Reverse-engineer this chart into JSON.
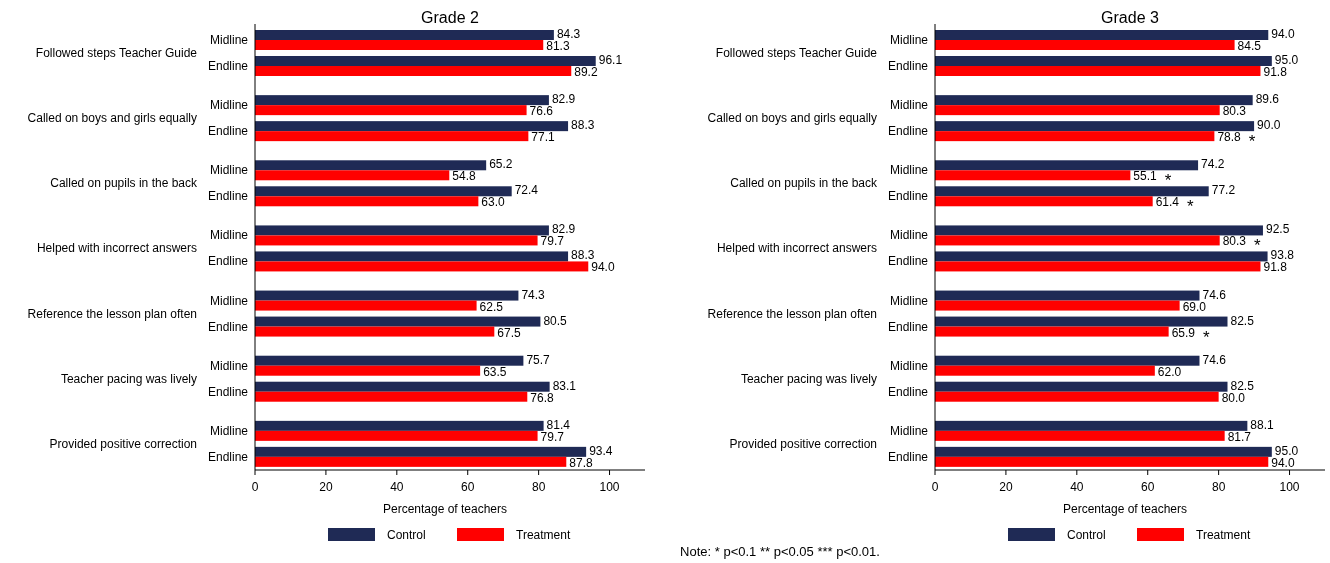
{
  "chart_data": [
    {
      "type": "bar",
      "orientation": "horizontal",
      "title": "Grade 2",
      "xlabel": "Percentage of teachers",
      "categories": [
        "Midline",
        "Endline",
        "Midline",
        "Endline",
        "Midline",
        "Endline",
        "Midline",
        "Endline",
        "Midline",
        "Endline",
        "Midline",
        "Endline",
        "Midline",
        "Endline"
      ],
      "series": [
        {
          "name": "Control",
          "color": "#1f2a55",
          "values": [
            84.3,
            96.1,
            82.9,
            88.3,
            65.2,
            72.4,
            82.9,
            88.3,
            74.3,
            80.5,
            75.7,
            83.1,
            81.4,
            93.4
          ],
          "value_labels": [
            "84.3",
            "96.1",
            "82.9",
            "88.3",
            "65.2",
            "72.4",
            "82.9",
            "88.3",
            "74.3",
            "80.5",
            "75.7",
            "83.1",
            "81.4",
            "93.4"
          ]
        },
        {
          "name": "Treatment",
          "color": "#ff0000",
          "values": [
            81.3,
            89.2,
            76.6,
            77.1,
            54.8,
            63.0,
            79.7,
            94.0,
            62.5,
            67.5,
            63.5,
            76.8,
            79.7,
            87.8
          ],
          "value_labels": [
            "81.3",
            "89.2",
            "76.6",
            "77.1",
            "54.8",
            "63.0",
            "79.7",
            "94.0",
            "62.5",
            "67.5",
            "63.5",
            "76.8",
            "79.7",
            "87.8"
          ]
        }
      ],
      "xlim": [
        0,
        110
      ],
      "xticks": [
        0,
        20,
        40,
        60,
        80,
        100
      ],
      "legend": "bottom",
      "annotations": [
        "Followed steps Teacher Guide",
        "Called on boys and girls equally",
        "Called on pupils in the back",
        "Helped with incorrect answers",
        "Reference the lesson plan often",
        "Teacher pacing was lively",
        "Provided positive correction"
      ]
    },
    {
      "type": "bar",
      "orientation": "horizontal",
      "title": "Grade 3",
      "xlabel": "Percentage of teachers",
      "categories": [
        "Midline",
        "Endline",
        "Midline",
        "Endline",
        "Midline",
        "Endline",
        "Midline",
        "Endline",
        "Midline",
        "Endline",
        "Midline",
        "Endline",
        "Midline",
        "Endline"
      ],
      "series": [
        {
          "name": "Control",
          "color": "#1f2a55",
          "values": [
            94.0,
            95.0,
            89.6,
            90.0,
            74.2,
            77.2,
            92.5,
            93.8,
            74.6,
            82.5,
            74.6,
            82.5,
            88.1,
            95.0
          ],
          "value_labels": [
            "94.0",
            "95.0",
            "89.6",
            "90.0",
            "74.2",
            "77.2",
            "92.5",
            "93.8",
            "74.6",
            "82.5",
            "74.6",
            "82.5",
            "88.1",
            "95.0"
          ]
        },
        {
          "name": "Treatment",
          "color": "#ff0000",
          "values": [
            84.5,
            91.8,
            80.3,
            78.8,
            55.1,
            61.4,
            80.3,
            91.8,
            69.0,
            65.9,
            62.0,
            80.0,
            81.7,
            94.0
          ],
          "value_labels": [
            "84.5",
            "91.8",
            "80.3",
            "78.8 *",
            "55.1 *",
            "61.4 *",
            "80.3 *",
            "91.8",
            "69.0",
            "65.9 *",
            "62.0",
            "80.0",
            "81.7",
            "94.0"
          ]
        }
      ],
      "xlim": [
        0,
        110
      ],
      "xticks": [
        0,
        20,
        40,
        60,
        80,
        100
      ],
      "legend": "bottom",
      "annotations": [
        "Followed steps Teacher Guide",
        "Called on boys and girls equally",
        "Called on pupils in the back",
        "Helped with incorrect answers",
        "Reference the lesson plan often",
        "Teacher pacing was lively",
        "Provided positive correction",
        "Note: * p<0.1 ** p<0.05 *** p<0.01."
      ]
    }
  ]
}
